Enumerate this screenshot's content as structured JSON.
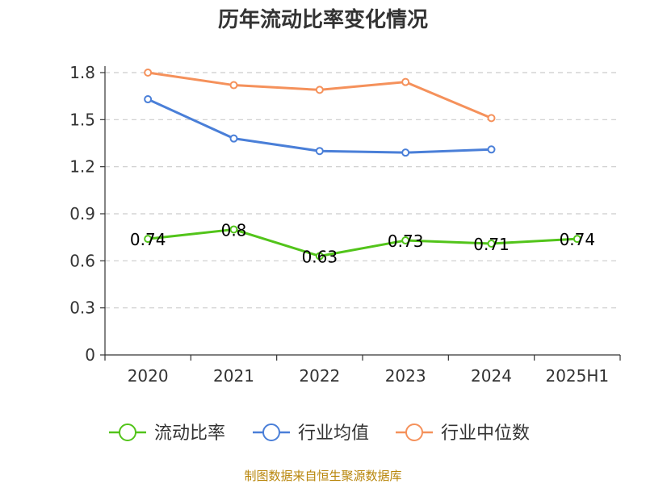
{
  "chart_data": {
    "type": "line",
    "title": "历年流动比率变化情况",
    "categories": [
      "2020",
      "2021",
      "2022",
      "2023",
      "2024",
      "2025H1"
    ],
    "yticks": [
      "0",
      "0.3",
      "0.6",
      "0.9",
      "1.2",
      "1.5",
      "1.8"
    ],
    "ylim": [
      0,
      1.8
    ],
    "grid": true,
    "legend_position": "bottom",
    "series": [
      {
        "name": "流动比率",
        "color": "#52c41a",
        "values": [
          0.74,
          0.8,
          0.63,
          0.73,
          0.71,
          0.74
        ],
        "labels": [
          "0.74",
          "0.8",
          "0.63",
          "0.73",
          "0.71",
          "0.74"
        ]
      },
      {
        "name": "行业均值",
        "color": "#4a7fd8",
        "values": [
          1.63,
          1.38,
          1.3,
          1.29,
          1.31,
          null
        ]
      },
      {
        "name": "行业中位数",
        "color": "#f5915b",
        "values": [
          1.8,
          1.72,
          1.69,
          1.74,
          1.51,
          null
        ]
      }
    ]
  },
  "footer": {
    "source": "制图数据来自恒生聚源数据库"
  }
}
